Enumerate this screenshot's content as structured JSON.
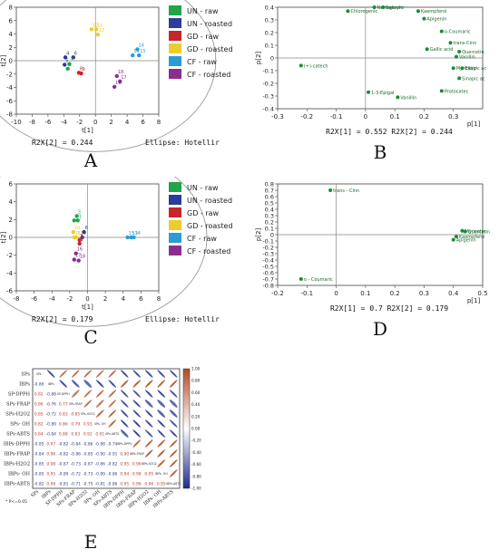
{
  "panels": {
    "A": {
      "letter": "A",
      "xlabel": "t[1]",
      "ylabel": "t[2]",
      "r2x": "R2X[2] = 0.244",
      "ellipse": "Ellipse: Hotellir"
    },
    "B": {
      "letter": "B",
      "xlabel": "p[1]",
      "ylabel": "p[2]",
      "r2x": "R2X[1] = 0.552  R2X[2] = 0.244"
    },
    "C": {
      "letter": "C",
      "xlabel": "t[1]",
      "ylabel": "t[2]",
      "r2x": "R2X[2] = 0.179",
      "ellipse": "Ellipse: Hotellir"
    },
    "D": {
      "letter": "D",
      "xlabel": "p[1]",
      "ylabel": "p[2]",
      "r2x": "R2X[1] = 0.7    R2X[2] = 0.179"
    },
    "E": {
      "letter": "E"
    }
  },
  "legend": [
    {
      "label": "UN - raw",
      "color": "#1fa54a"
    },
    {
      "label": "UN - roasted",
      "color": "#2a3d9a"
    },
    {
      "label": "GD - raw",
      "color": "#c8242a"
    },
    {
      "label": "GD - roasted",
      "color": "#e9cf2b"
    },
    {
      "label": "CF - raw",
      "color": "#2b9bd6"
    },
    {
      "label": "CF - roasted",
      "color": "#8e2c8e"
    }
  ],
  "chart_data": [
    {
      "type": "scatter",
      "panel": "A",
      "xlabel": "t[1]",
      "ylabel": "t[2]",
      "xlim": [
        -10,
        8
      ],
      "ylim": [
        -8,
        8
      ],
      "xticks": [
        -10,
        -8,
        -6,
        -4,
        -2,
        0,
        2,
        4,
        6,
        8
      ],
      "yticks": [
        -8,
        -6,
        -4,
        -2,
        0,
        2,
        4,
        6,
        8
      ],
      "points": [
        {
          "label": "10",
          "x": -0.5,
          "y": 4.7,
          "group": 3
        },
        {
          "label": "11",
          "x": 0.1,
          "y": 4.7,
          "group": 3
        },
        {
          "label": "12",
          "x": 0.3,
          "y": 3.9,
          "group": 3
        },
        {
          "label": "4",
          "x": -3.8,
          "y": 0.5,
          "group": 1
        },
        {
          "label": "6",
          "x": -2.8,
          "y": 0.5,
          "group": 1
        },
        {
          "label": "5",
          "x": -3.9,
          "y": -0.6,
          "group": 1
        },
        {
          "label": "3",
          "x": -3.3,
          "y": -0.5,
          "group": 0
        },
        {
          "label": "2",
          "x": -3.5,
          "y": -1.2,
          "group": 0
        },
        {
          "label": "8",
          "x": -2.1,
          "y": -1.8,
          "group": 2
        },
        {
          "label": "9",
          "x": -1.8,
          "y": -1.9,
          "group": 2
        },
        {
          "label": "14",
          "x": 5.3,
          "y": 1.7,
          "group": 4
        },
        {
          "label": "13",
          "x": 4.7,
          "y": 0.8,
          "group": 4
        },
        {
          "label": "15",
          "x": 5.5,
          "y": 0.8,
          "group": 4
        },
        {
          "label": "18",
          "x": 2.7,
          "y": -2.3,
          "group": 5
        },
        {
          "label": "17",
          "x": 3.1,
          "y": -3.1,
          "group": 5
        },
        {
          "label": "16",
          "x": 2.4,
          "y": -3.9,
          "group": 5
        }
      ]
    },
    {
      "type": "scatter",
      "panel": "B",
      "xlabel": "p[1]",
      "ylabel": "p[2]",
      "xlim": [
        -0.3,
        0.4
      ],
      "ylim": [
        -0.4,
        0.4
      ],
      "xticks": [
        -0.3,
        -0.2,
        -0.1,
        0,
        0.1,
        0.2,
        0.3
      ],
      "yticks": [
        0.4,
        0.3,
        0.2,
        0.1,
        0,
        -0.1,
        -0.2,
        -0.3,
        -0.4
      ],
      "points": [
        {
          "label": "Chlorogenic",
          "x": -0.06,
          "y": 0.37
        },
        {
          "label": "Naringenin",
          "x": 0.03,
          "y": 0.4
        },
        {
          "label": "Salicylic",
          "x": 0.06,
          "y": 0.4
        },
        {
          "label": "Kaempferol",
          "x": 0.18,
          "y": 0.37
        },
        {
          "label": "Apigenin",
          "x": 0.2,
          "y": 0.31
        },
        {
          "label": "o-Coumaric",
          "x": 0.26,
          "y": 0.21
        },
        {
          "label": "trans-Cinn",
          "x": 0.29,
          "y": 0.12
        },
        {
          "label": "Gallic acid",
          "x": 0.21,
          "y": 0.07
        },
        {
          "label": "Quercetin",
          "x": 0.32,
          "y": 0.05
        },
        {
          "label": "Vanillin",
          "x": 0.31,
          "y": 0.01
        },
        {
          "label": "Myricetin",
          "x": 0.3,
          "y": -0.08
        },
        {
          "label": "Ellagic ac",
          "x": 0.33,
          "y": -0.08
        },
        {
          "label": "Sinapic ac",
          "x": 0.32,
          "y": -0.16
        },
        {
          "label": "(+)-catech",
          "x": -0.22,
          "y": -0.06
        },
        {
          "label": "1-3-Epigal",
          "x": 0.01,
          "y": -0.27
        },
        {
          "label": "Vanillin",
          "x": 0.11,
          "y": -0.31
        },
        {
          "label": "Protocatec",
          "x": 0.26,
          "y": -0.26
        }
      ]
    },
    {
      "type": "scatter",
      "panel": "C",
      "xlabel": "t[1]",
      "ylabel": "t[2]",
      "xlim": [
        -8,
        8
      ],
      "ylim": [
        -6,
        6
      ],
      "xticks": [
        -8,
        -6,
        -4,
        -2,
        0,
        2,
        4,
        6,
        8
      ],
      "yticks": [
        -6,
        -4,
        -2,
        0,
        2,
        4,
        6
      ],
      "points": [
        {
          "label": "3",
          "x": -1.2,
          "y": 2.4,
          "group": 0
        },
        {
          "label": "2",
          "x": -1.5,
          "y": 1.9,
          "group": 0
        },
        {
          "label": "1",
          "x": -1.1,
          "y": 1.9,
          "group": 0
        },
        {
          "label": "10",
          "x": -1.6,
          "y": 0.6,
          "group": 3
        },
        {
          "label": "6",
          "x": -0.4,
          "y": 0.6,
          "group": 1
        },
        {
          "label": "11",
          "x": -1.5,
          "y": 0.0,
          "group": 3
        },
        {
          "label": "12",
          "x": -1.3,
          "y": 0.0,
          "group": 3
        },
        {
          "label": "4",
          "x": -0.6,
          "y": 0.0,
          "group": 1
        },
        {
          "label": "8",
          "x": -0.9,
          "y": -0.3,
          "group": 2
        },
        {
          "label": "9",
          "x": -0.9,
          "y": -0.7,
          "group": 2
        },
        {
          "label": "15",
          "x": 4.5,
          "y": 0.0,
          "group": 4
        },
        {
          "label": "13",
          "x": 4.9,
          "y": 0.0,
          "group": 4
        },
        {
          "label": "14",
          "x": 5.2,
          "y": 0.0,
          "group": 4
        },
        {
          "label": "16",
          "x": -1.3,
          "y": -1.8,
          "group": 5
        },
        {
          "label": "17",
          "x": -1.5,
          "y": -2.5,
          "group": 5
        },
        {
          "label": "18",
          "x": -1.0,
          "y": -2.6,
          "group": 5
        }
      ]
    },
    {
      "type": "scatter",
      "panel": "D",
      "xlabel": "p[1]",
      "ylabel": "p[2]",
      "xlim": [
        -0.2,
        0.5
      ],
      "ylim": [
        -0.8,
        0.8
      ],
      "xticks": [
        -0.2,
        -0.1,
        0,
        0.1,
        0.2,
        0.3,
        0.4,
        0.5
      ],
      "yticks": [
        0.8,
        0.7,
        0.6,
        0.5,
        0.4,
        0.3,
        0.2,
        0.1,
        0,
        -0.1,
        -0.2,
        -0.3,
        -0.4,
        -0.5,
        -0.6,
        -0.7,
        -0.8
      ],
      "points": [
        {
          "label": "trans - Cinn",
          "x": -0.02,
          "y": 0.7
        },
        {
          "label": "o - Coumaric",
          "x": -0.12,
          "y": -0.7
        },
        {
          "label": "Myricetin",
          "x": 0.43,
          "y": 0.06
        },
        {
          "label": "Quercetin",
          "x": 0.44,
          "y": 0.05
        },
        {
          "label": "Kaempferol",
          "x": 0.41,
          "y": -0.03
        },
        {
          "label": "Apigenin",
          "x": 0.4,
          "y": -0.08
        }
      ]
    },
    {
      "type": "heatmap",
      "panel": "E",
      "labels": [
        "SPs",
        "IBPs",
        "SP-DPPH",
        "SPs-FRAP",
        "SPs-H2O2",
        "SPs- OH",
        "SPs-ABTS",
        "IBPs-DPPH",
        "IBPs-FRAP",
        "IBPs-H2O2",
        "IBPs- OH",
        "IBPs-ABTS"
      ],
      "matrix": [
        [
          1,
          -0.86,
          0.82,
          0.86,
          0.85,
          0.82,
          0.84,
          -0.85,
          -0.84,
          -0.85,
          -0.85,
          -0.82
        ],
        [
          -0.86,
          1,
          -0.88,
          -0.76,
          -0.72,
          -0.89,
          -0.84,
          0.97,
          0.96,
          0.98,
          0.95,
          0.98
        ],
        [
          0.82,
          -0.88,
          1,
          0.77,
          0.83,
          0.86,
          0.88,
          -0.82,
          -0.82,
          -0.87,
          -0.89,
          -0.81
        ],
        [
          0.86,
          -0.76,
          0.77,
          1,
          0.85,
          0.79,
          0.83,
          -0.84,
          -0.86,
          -0.73,
          -0.72,
          -0.71
        ],
        [
          0.85,
          -0.72,
          0.83,
          0.85,
          1,
          0.93,
          0.92,
          -0.86,
          -0.85,
          -0.87,
          -0.73,
          -0.75
        ],
        [
          0.82,
          -0.89,
          0.86,
          0.79,
          0.93,
          1,
          0.91,
          -0.88,
          -0.9,
          -0.86,
          -0.89,
          -0.81
        ],
        [
          0.84,
          -0.84,
          0.88,
          0.83,
          0.92,
          0.91,
          1,
          -0.74,
          -0.91,
          -0.82,
          -0.86,
          -0.86
        ],
        [
          -0.85,
          0.97,
          -0.82,
          -0.84,
          -0.86,
          -0.88,
          -0.74,
          1,
          0.9,
          0.95,
          0.94,
          0.95
        ],
        [
          -0.84,
          0.96,
          -0.82,
          -0.86,
          -0.85,
          -0.9,
          -0.91,
          0.9,
          1,
          0.96,
          0.98,
          0.96
        ],
        [
          -0.85,
          0.98,
          -0.87,
          -0.73,
          -0.87,
          -0.86,
          -0.82,
          0.95,
          0.96,
          1,
          0.95,
          0.96
        ],
        [
          -0.85,
          0.95,
          -0.89,
          -0.72,
          -0.73,
          -0.89,
          -0.86,
          0.94,
          0.98,
          0.95,
          1,
          0.95
        ],
        [
          -0.82,
          0.98,
          -0.81,
          -0.71,
          -0.75,
          -0.81,
          -0.86,
          0.95,
          0.96,
          0.96,
          0.95,
          1
        ]
      ],
      "colorbar_ticks": [
        "1.00",
        "0.80",
        "0.60",
        "0.40",
        "0.20",
        "0.00",
        "-0.20",
        "-0.40",
        "-0.60",
        "-0.80",
        "-1.00"
      ],
      "footnote": "* P<=0.05"
    }
  ]
}
